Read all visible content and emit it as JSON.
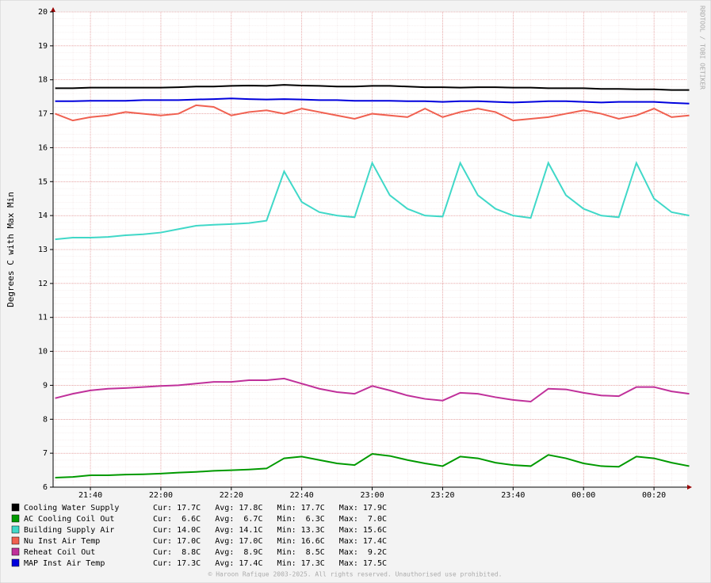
{
  "chart_data": {
    "type": "line",
    "y_label": "Degrees C with Max Min",
    "side_label": "RRDTOOL / TOBI OETIKER",
    "footer": "© Haroon Rafique 2003-2025. All rights reserved. Unauthorised use prohibited.",
    "categories": [
      "21:30",
      "21:35",
      "21:40",
      "21:45",
      "21:50",
      "21:55",
      "22:00",
      "22:05",
      "22:10",
      "22:15",
      "22:20",
      "22:25",
      "22:30",
      "22:35",
      "22:40",
      "22:45",
      "22:50",
      "22:55",
      "23:00",
      "23:05",
      "23:10",
      "23:15",
      "23:20",
      "23:25",
      "23:30",
      "23:35",
      "23:40",
      "23:45",
      "23:50",
      "23:55",
      "00:00",
      "00:05",
      "00:10",
      "00:15",
      "00:20",
      "00:25",
      "00:30"
    ],
    "xticks": [
      "21:40",
      "22:00",
      "22:20",
      "22:40",
      "23:00",
      "23:20",
      "23:40",
      "00:00",
      "00:20"
    ],
    "ylim": [
      6,
      20
    ],
    "yticks": [
      6,
      7,
      8,
      9,
      10,
      11,
      12,
      13,
      14,
      15,
      16,
      17,
      18,
      19,
      20
    ],
    "grid": true,
    "series": [
      {
        "name": "Cooling Water Supply",
        "color": "#000000",
        "stats": "Cur: 17.7C   Avg: 17.8C   Min: 17.7C   Max: 17.9C",
        "values": [
          17.75,
          17.75,
          17.77,
          17.77,
          17.77,
          17.77,
          17.77,
          17.78,
          17.8,
          17.8,
          17.82,
          17.83,
          17.82,
          17.85,
          17.83,
          17.82,
          17.8,
          17.8,
          17.82,
          17.82,
          17.8,
          17.78,
          17.78,
          17.77,
          17.78,
          17.78,
          17.77,
          17.77,
          17.75,
          17.75,
          17.75,
          17.73,
          17.73,
          17.72,
          17.72,
          17.7,
          17.7
        ]
      },
      {
        "name": "AC Cooling Coil Out",
        "color": "#009a00",
        "stats": "Cur:  6.6C   Avg:  6.7C   Min:  6.3C   Max:  7.0C",
        "values": [
          6.28,
          6.3,
          6.35,
          6.35,
          6.37,
          6.38,
          6.4,
          6.43,
          6.45,
          6.48,
          6.5,
          6.52,
          6.55,
          6.85,
          6.9,
          6.8,
          6.7,
          6.65,
          6.98,
          6.92,
          6.8,
          6.7,
          6.62,
          6.9,
          6.85,
          6.72,
          6.65,
          6.62,
          6.95,
          6.85,
          6.7,
          6.62,
          6.6,
          6.9,
          6.85,
          6.72,
          6.62
        ]
      },
      {
        "name": "Building Supply Air",
        "color": "#40d8c8",
        "stats": "Cur: 14.0C   Avg: 14.1C   Min: 13.3C   Max: 15.6C",
        "values": [
          13.3,
          13.35,
          13.35,
          13.37,
          13.42,
          13.45,
          13.5,
          13.6,
          13.7,
          13.73,
          13.75,
          13.78,
          13.85,
          15.3,
          14.4,
          14.1,
          14.0,
          13.95,
          15.55,
          14.6,
          14.2,
          14.0,
          13.97,
          15.55,
          14.6,
          14.2,
          14.0,
          13.93,
          15.55,
          14.6,
          14.2,
          14.0,
          13.95,
          15.55,
          14.5,
          14.1,
          14.0
        ]
      },
      {
        "name": "Nu Inst Air Temp",
        "color": "#f06050",
        "stats": "Cur: 17.0C   Avg: 17.0C   Min: 16.6C   Max: 17.4C",
        "values": [
          17.0,
          16.8,
          16.9,
          16.95,
          17.05,
          17.0,
          16.95,
          17.0,
          17.25,
          17.2,
          16.95,
          17.05,
          17.1,
          17.0,
          17.15,
          17.05,
          16.95,
          16.85,
          17.0,
          16.95,
          16.9,
          17.15,
          16.9,
          17.05,
          17.15,
          17.05,
          16.8,
          16.85,
          16.9,
          17.0,
          17.1,
          17.0,
          16.85,
          16.95,
          17.15,
          16.9,
          16.95
        ]
      },
      {
        "name": "Reheat Coil Out",
        "color": "#c0309a",
        "stats": "Cur:  8.8C   Avg:  8.9C   Min:  8.5C   Max:  9.2C",
        "values": [
          8.62,
          8.75,
          8.85,
          8.9,
          8.92,
          8.95,
          8.98,
          9.0,
          9.05,
          9.1,
          9.1,
          9.15,
          9.15,
          9.2,
          9.05,
          8.9,
          8.8,
          8.75,
          8.98,
          8.85,
          8.7,
          8.6,
          8.55,
          8.78,
          8.75,
          8.65,
          8.57,
          8.52,
          8.9,
          8.88,
          8.78,
          8.7,
          8.68,
          8.95,
          8.95,
          8.82,
          8.75
        ]
      },
      {
        "name": "MAP Inst Air Temp",
        "color": "#0000dd",
        "stats": "Cur: 17.3C   Avg: 17.4C   Min: 17.3C   Max: 17.5C",
        "values": [
          17.37,
          17.37,
          17.38,
          17.38,
          17.38,
          17.4,
          17.4,
          17.4,
          17.42,
          17.43,
          17.45,
          17.43,
          17.42,
          17.43,
          17.42,
          17.4,
          17.4,
          17.38,
          17.38,
          17.38,
          17.37,
          17.37,
          17.35,
          17.37,
          17.37,
          17.35,
          17.33,
          17.35,
          17.37,
          17.37,
          17.35,
          17.33,
          17.35,
          17.35,
          17.35,
          17.32,
          17.3
        ]
      }
    ]
  }
}
